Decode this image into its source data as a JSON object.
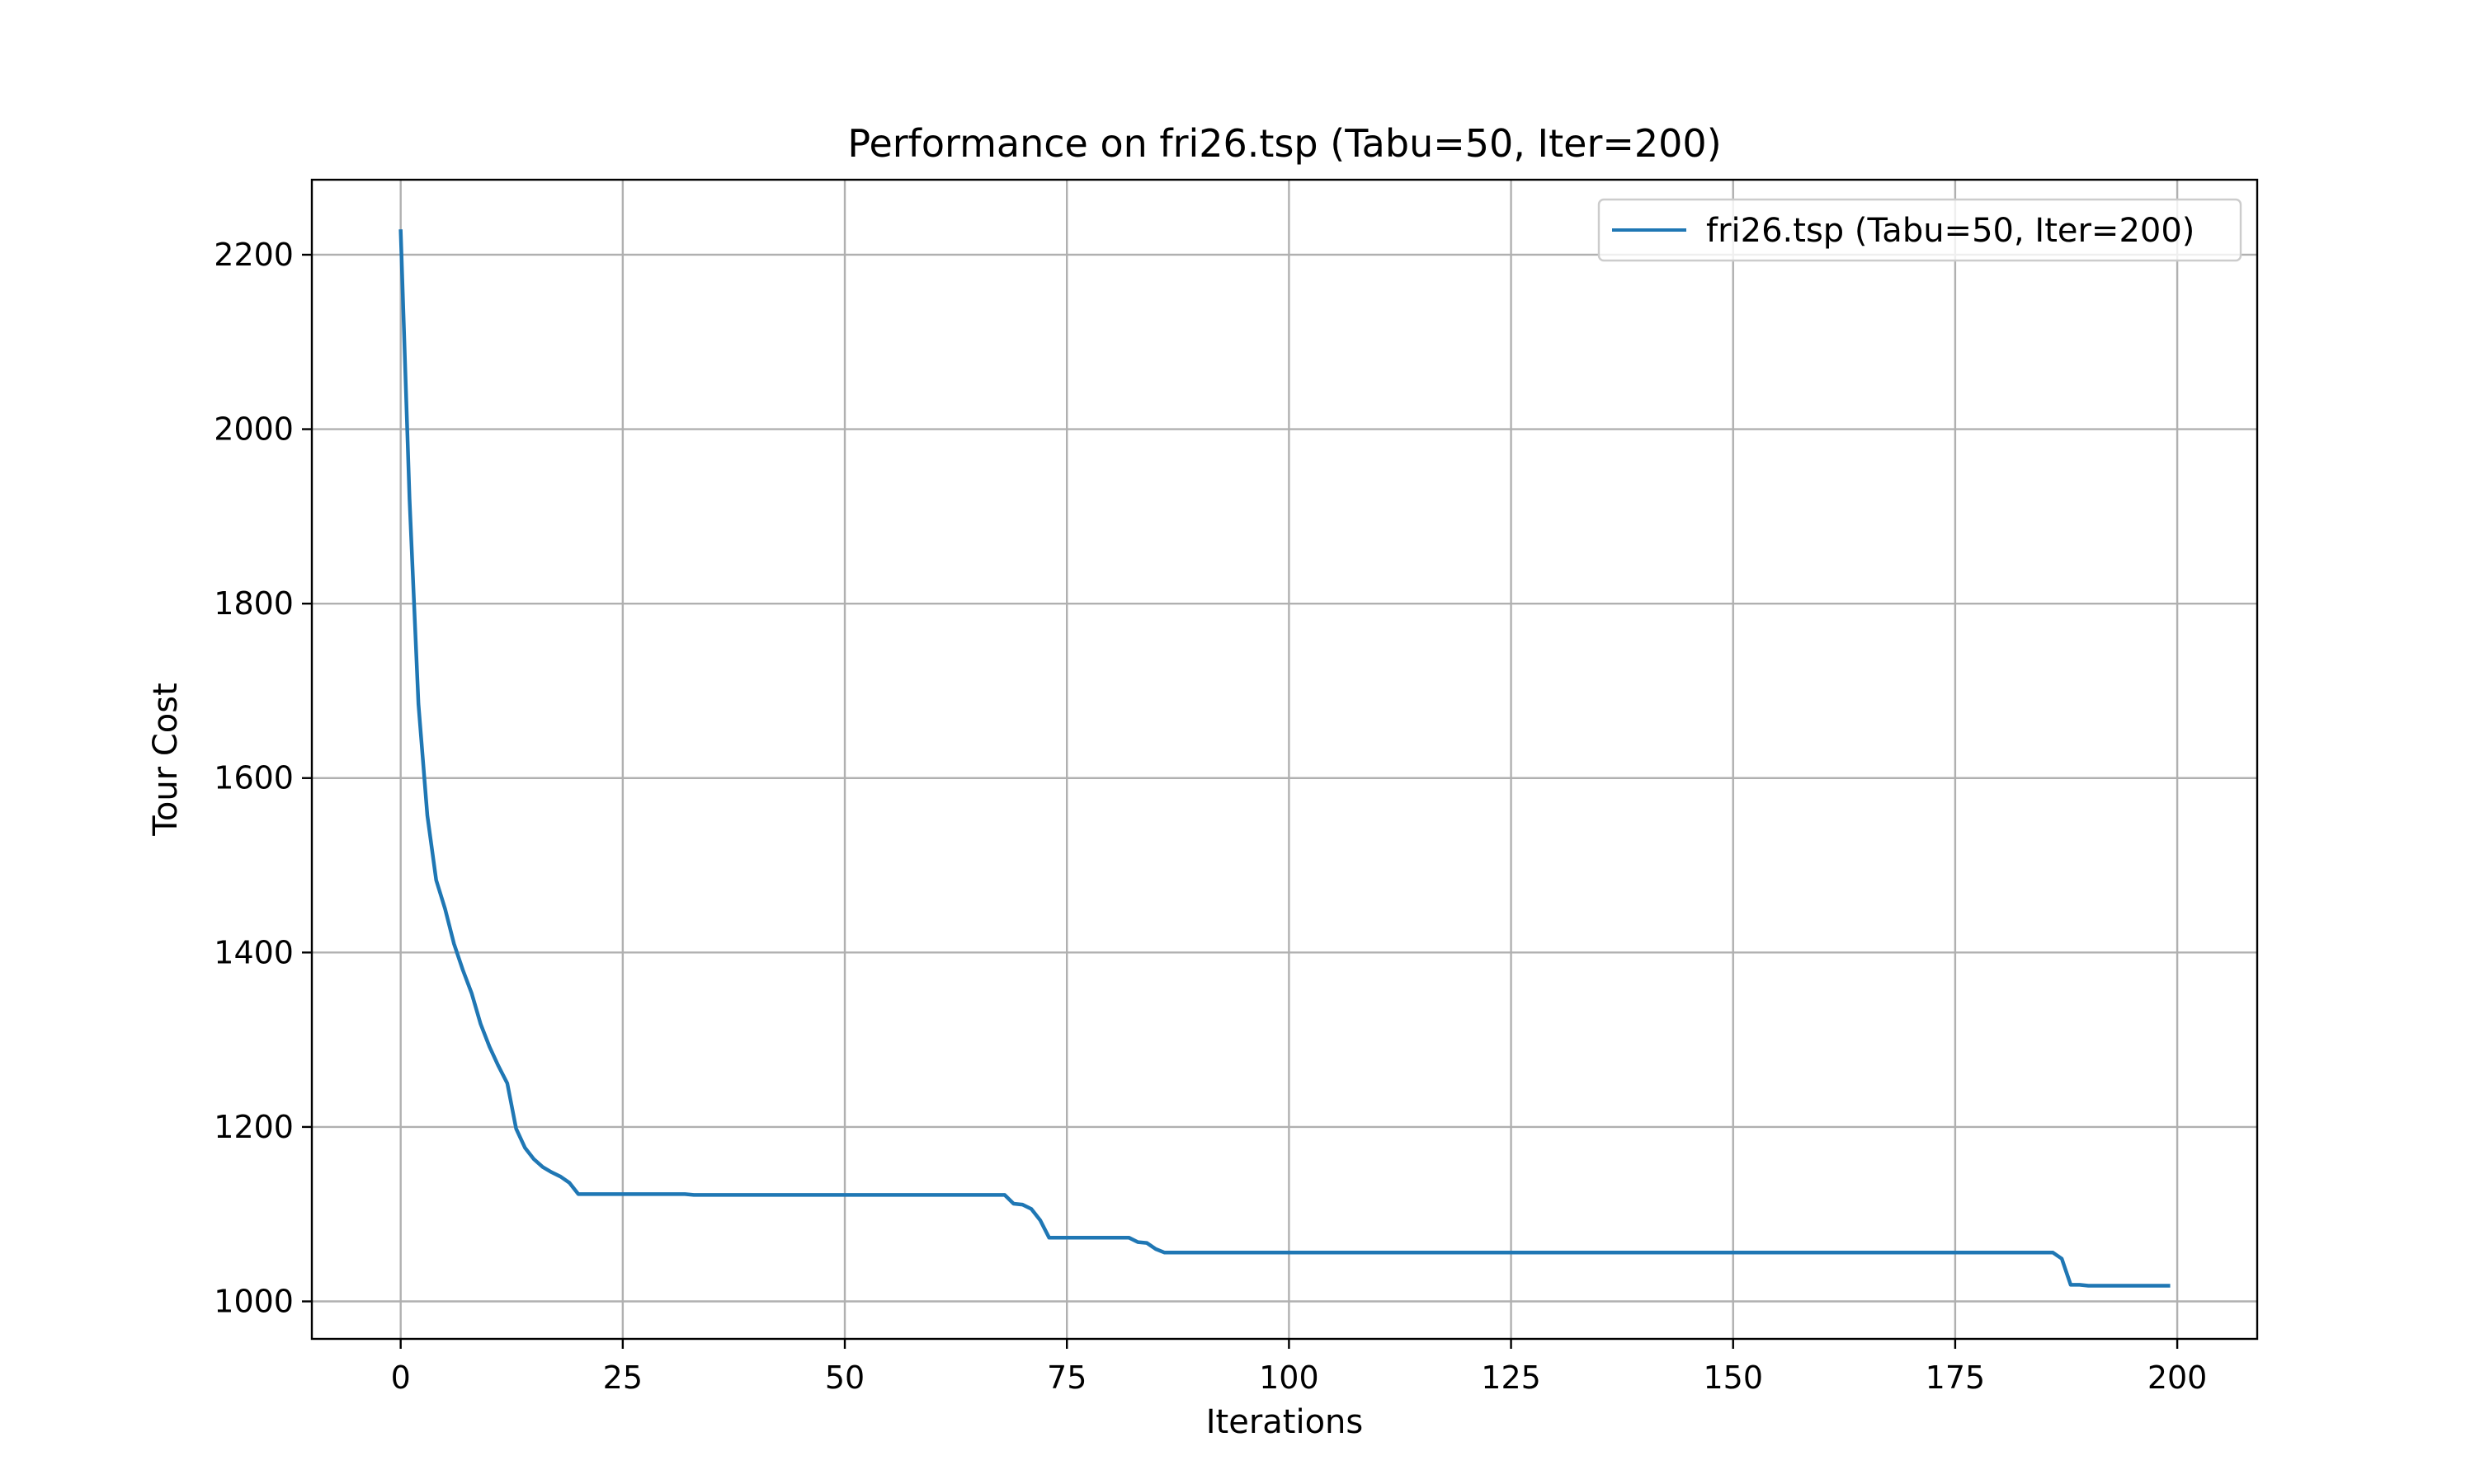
{
  "chart_data": {
    "type": "line",
    "title": "Performance on fri26.tsp (Tabu=50, Iter=200)",
    "xlabel": "Iterations",
    "ylabel": "Tour Cost",
    "xlim": [
      -10,
      209
    ],
    "ylim": [
      957,
      2286
    ],
    "xticks": [
      0,
      25,
      50,
      75,
      100,
      125,
      150,
      175,
      200
    ],
    "yticks": [
      1000,
      1200,
      1400,
      1600,
      1800,
      2000,
      2200
    ],
    "grid": true,
    "legend_position": "top-right",
    "series": [
      {
        "name": "fri26.tsp (Tabu=50, Iter=200)",
        "color": "#1f77b4",
        "x": [
          0,
          1,
          2,
          3,
          4,
          5,
          6,
          7,
          8,
          9,
          10,
          11,
          12,
          13,
          14,
          15,
          16,
          17,
          18,
          19,
          20,
          32,
          33,
          68,
          69,
          70,
          71,
          72,
          73,
          82,
          83,
          84,
          85,
          86,
          186,
          187,
          188,
          189,
          190,
          199
        ],
        "values": [
          2227,
          1920,
          1685,
          1557,
          1483,
          1450,
          1410,
          1380,
          1353,
          1318,
          1292,
          1270,
          1250,
          1198,
          1176,
          1163,
          1154,
          1148,
          1143,
          1136,
          1123,
          1123,
          1122,
          1122,
          1112,
          1111,
          1106,
          1093,
          1073,
          1073,
          1068,
          1067,
          1060,
          1056,
          1056,
          1049,
          1019,
          1019,
          1018,
          1018
        ]
      }
    ]
  }
}
